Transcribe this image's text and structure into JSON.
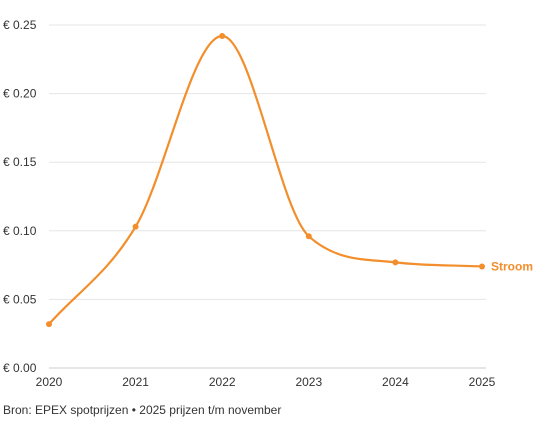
{
  "chart_data": {
    "type": "line",
    "x": [
      2020,
      2021,
      2022,
      2023,
      2024,
      2025
    ],
    "x_tick_labels": [
      "2020",
      "2021",
      "2022",
      "2023",
      "2024",
      "2025"
    ],
    "series": [
      {
        "name": "Stroom",
        "color": "#f28e2b",
        "values": [
          0.032,
          0.103,
          0.242,
          0.096,
          0.077,
          0.074
        ]
      }
    ],
    "y_ticks": [
      0.0,
      0.05,
      0.1,
      0.15,
      0.2,
      0.25
    ],
    "y_tick_labels": [
      "€ 0.00",
      "€ 0.05",
      "€ 0.10",
      "€ 0.15",
      "€ 0.20",
      "€ 0.25"
    ],
    "ylim": [
      0,
      0.25
    ],
    "xlim": [
      2020,
      2025
    ],
    "grid": true,
    "legend": "end-of-line label"
  },
  "source_note": "Bron: EPEX spotprijzen • 2025 prijzen t/m november"
}
